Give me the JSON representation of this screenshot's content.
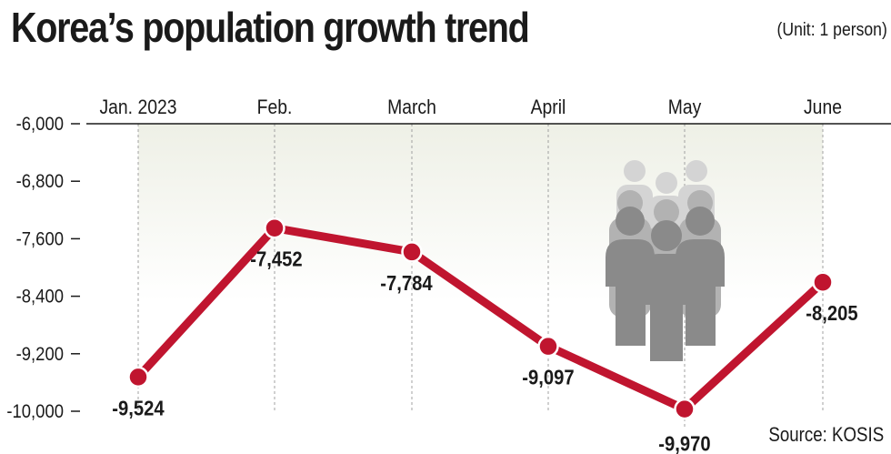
{
  "title": "Korea’s population growth trend",
  "unit_note": "(Unit: 1 person)",
  "source_note": "Source: KOSIS",
  "colors": {
    "line": "#c0152f",
    "marker_ring": "#ffffff",
    "band_top": "#eef0e6",
    "gridline": "#a0a0a0",
    "axis": "#1a1a1a",
    "figure_light": "#d4d4d4",
    "figure_mid": "#b2b2b2",
    "figure_dark": "#8a8a8a"
  },
  "icon": "people-group-icon",
  "chart_data": {
    "type": "line",
    "categories": [
      "Jan. 2023",
      "Feb.",
      "March",
      "April",
      "May",
      "June"
    ],
    "values": [
      -9524,
      -7452,
      -7784,
      -9097,
      -9970,
      -8205
    ],
    "data_labels": [
      "-9,524",
      "-7,452",
      "-7,784",
      "-9,097",
      "-9,970",
      "-8,205"
    ],
    "y_ticks": [
      -6000,
      -6800,
      -7600,
      -8400,
      -9200,
      -10000
    ],
    "y_tick_labels": [
      "-6,000",
      "-6,800",
      "-7,600",
      "-8,400",
      "-9,200",
      "-10,000"
    ],
    "ylim": [
      -10000,
      -6000
    ],
    "grid": "vertical dashed lines at each month",
    "legend": "none"
  }
}
